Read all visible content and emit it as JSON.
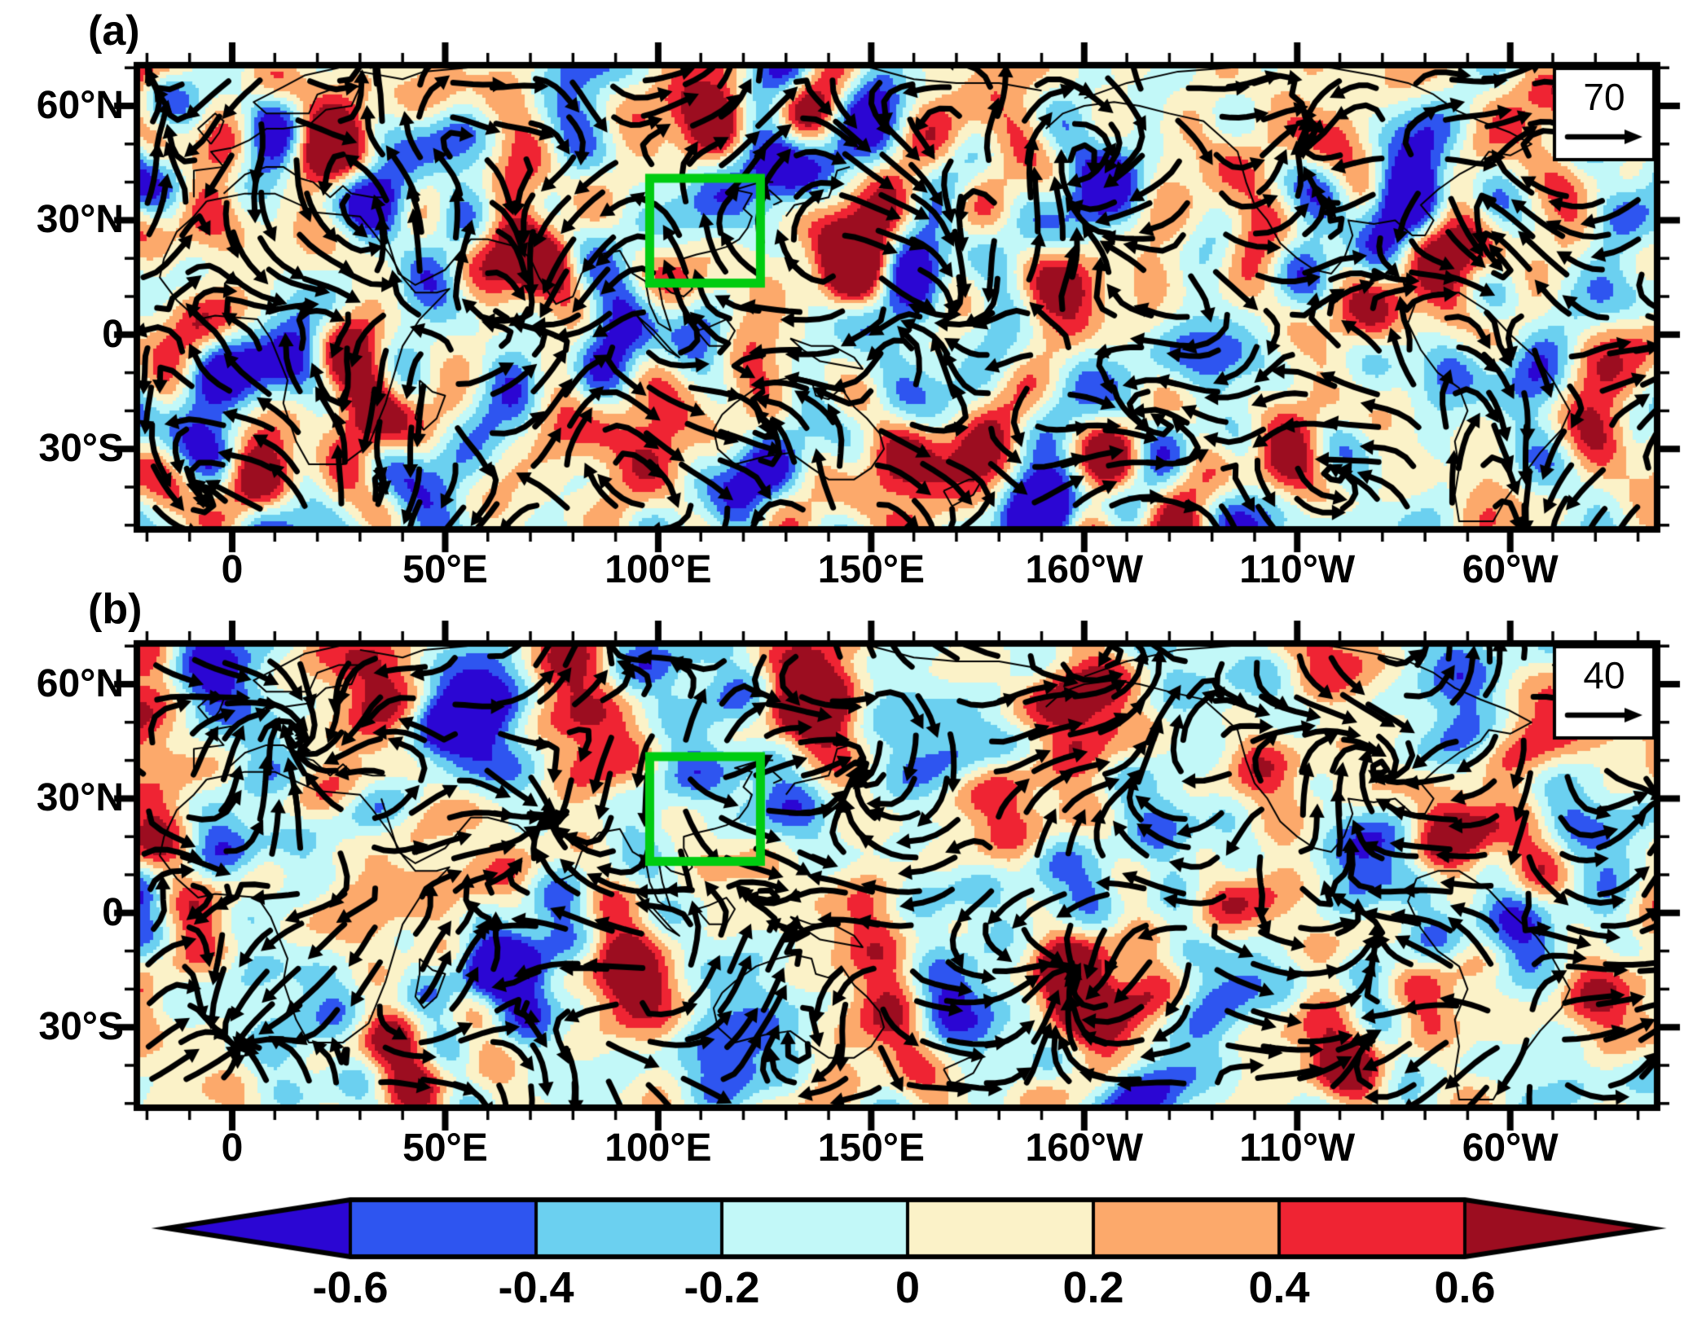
{
  "figure": {
    "background_color": "#FFFFFF",
    "panels": [
      {
        "label": "(a)",
        "reference_vector_value": "70"
      },
      {
        "label": "(b)",
        "reference_vector_value": "40"
      }
    ],
    "colors": {
      "highlight_box": "#00CC11",
      "arrows": "#000000",
      "frame": "#000000",
      "reference_box_fill": "#FFFFFF"
    }
  },
  "chart_data": {
    "type": "heatmap",
    "subtype": "two stacked global filled-contour anomaly maps with overlaid black wind-vector streamline arrows, green highlight box over East Asia, shared horizontal colorbar at bottom",
    "panels": [
      {
        "label": "(a)",
        "reference_vector_value": 70,
        "reference_vector_position": "inset box, top-right corner of map",
        "highlight_box": {
          "lon_deg_east": [
            98,
            124
          ],
          "lat_deg_north": [
            13.5,
            41
          ],
          "color": "#00CC11"
        }
      },
      {
        "label": "(b)",
        "reference_vector_value": 40,
        "reference_vector_position": "inset box, top-right corner of map",
        "highlight_box": {
          "lon_deg_east": [
            98,
            124
          ],
          "lat_deg_north": [
            13.5,
            41
          ],
          "color": "#00CC11"
        }
      }
    ],
    "x_ticks": [
      {
        "label": "0",
        "lon_deg_east": 0
      },
      {
        "label": "50°E",
        "lon_deg_east": 50
      },
      {
        "label": "100°E",
        "lon_deg_east": 100
      },
      {
        "label": "150°E",
        "lon_deg_east": 150
      },
      {
        "label": "160°W",
        "lon_deg_east": 200
      },
      {
        "label": "110°W",
        "lon_deg_east": 250
      },
      {
        "label": "60°W",
        "lon_deg_east": 300
      }
    ],
    "y_ticks": [
      {
        "label": "60°N",
        "lat_deg_north": 60
      },
      {
        "label": "30°N",
        "lat_deg_north": 30
      },
      {
        "label": "0",
        "lat_deg_north": 0
      },
      {
        "label": "30°S",
        "lat_deg_north": -30
      }
    ],
    "minor_tick_interval_deg": 10,
    "map_extent_estimate": {
      "lon_deg_east": [
        -22,
        334
      ],
      "lat_deg_north": [
        -51,
        71
      ]
    },
    "colorbar": {
      "orientation": "horizontal",
      "position": "bottom",
      "tick_labels": [
        "-0.6",
        "-0.4",
        "-0.2",
        "0",
        "0.2",
        "0.4",
        "0.6"
      ],
      "levels": [
        -0.6,
        -0.4,
        -0.2,
        0,
        0.2,
        0.4,
        0.6
      ],
      "colors": [
        "#2B06D3",
        "#2E55F0",
        "#6BD0F0",
        "#C2F8F8",
        "#FBF2C8",
        "#FCA96B",
        "#EF2433",
        "#9C0D20"
      ],
      "open_ended_triangles": true
    },
    "shading_note": "filled contours of an anomaly/correlation field at 0.2 intervals between -0.6 and 0.6, open-ended beyond",
    "vector_note": "black curved arrows are wind vectors; reference arrow magnitude 70 in panel (a) and 40 in panel (b)"
  }
}
